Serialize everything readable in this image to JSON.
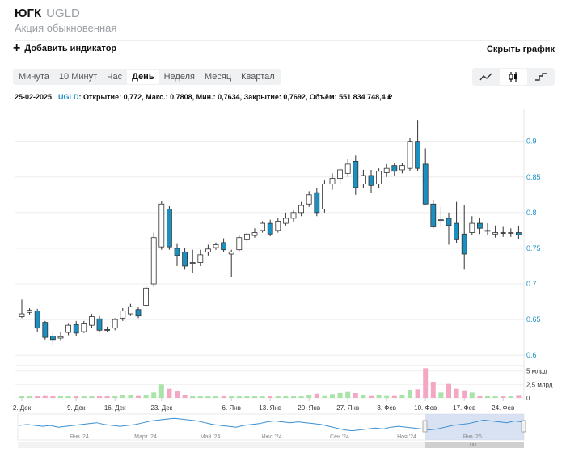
{
  "header": {
    "name": "ЮГК",
    "ticker": "UGLD",
    "subtitle": "Акция обыкновенная"
  },
  "toolbar": {
    "add_indicator": "Добавить индикатор",
    "hide_chart": "Скрыть график"
  },
  "period_tabs": [
    {
      "label": "Минута",
      "active": false
    },
    {
      "label": "10 Минут",
      "active": false
    },
    {
      "label": "Час",
      "active": false
    },
    {
      "label": "День",
      "active": true
    },
    {
      "label": "Неделя",
      "active": false
    },
    {
      "label": "Месяц",
      "active": false
    },
    {
      "label": "Квартал",
      "active": false
    }
  ],
  "chart_types": [
    {
      "icon": "line-chart-icon",
      "active": false
    },
    {
      "icon": "candlestick-icon",
      "active": true
    },
    {
      "icon": "step-chart-icon",
      "active": false
    }
  ],
  "info": {
    "date": "25-02-2025",
    "ticker": "UGLD",
    "text": ": Открытие: 0,772, Макс.: 0,7808, Мин.: 0,7634, Закрытие: 0,7692, Объём: 551 834 748,4 ₽"
  },
  "colors": {
    "up": "#ffffff",
    "down": "#1b8fbf",
    "vol_up": "#a8e3a8",
    "vol_down": "#f3a7c2",
    "axis_text": "#1a8fc4"
  },
  "chart_data": {
    "type": "candlestick",
    "x_ticks": [
      "2. Дек",
      "9. Дек",
      "16. Дек",
      "23. Дек",
      "6. Янв",
      "13. Янв",
      "20. Янв",
      "27. Янв",
      "3. Фев",
      "10. Фев",
      "17. Фев",
      "24. Фев"
    ],
    "x_tick_index": [
      0,
      7,
      12,
      18,
      27,
      32,
      37,
      42,
      47,
      52,
      57,
      62
    ],
    "y_ticks": [
      "0.6",
      "0.65",
      "0.7",
      "0.75",
      "0.8",
      "0.85",
      "0.9"
    ],
    "ylim": [
      0.59,
      0.945
    ],
    "vol_ticks": [
      "0",
      "2,5 млрд",
      "5 млрд"
    ],
    "vol_max": 6,
    "navigator_labels": [
      "Янв '24",
      "Март '24",
      "Май '24",
      "Июл '24",
      "Сен '24",
      "Ноя '24",
      "Янв '25"
    ],
    "candles": [
      [
        0.654,
        0.658,
        0.678,
        0.652,
        0.3
      ],
      [
        0.66,
        0.663,
        0.666,
        0.657,
        0.3
      ],
      [
        0.662,
        0.638,
        0.665,
        0.633,
        0.4
      ],
      [
        0.646,
        0.625,
        0.648,
        0.622,
        0.5
      ],
      [
        0.627,
        0.622,
        0.632,
        0.615,
        0.4
      ],
      [
        0.624,
        0.626,
        0.632,
        0.621,
        0.3
      ],
      [
        0.632,
        0.642,
        0.645,
        0.628,
        0.3
      ],
      [
        0.643,
        0.631,
        0.648,
        0.627,
        0.3
      ],
      [
        0.633,
        0.645,
        0.648,
        0.631,
        0.4
      ],
      [
        0.642,
        0.654,
        0.658,
        0.638,
        0.3
      ],
      [
        0.651,
        0.635,
        0.655,
        0.632,
        0.3
      ],
      [
        0.636,
        0.635,
        0.64,
        0.632,
        0.3
      ],
      [
        0.638,
        0.65,
        0.652,
        0.635,
        0.4
      ],
      [
        0.652,
        0.662,
        0.666,
        0.648,
        0.6
      ],
      [
        0.658,
        0.668,
        0.672,
        0.655,
        0.6
      ],
      [
        0.664,
        0.655,
        0.668,
        0.652,
        0.5
      ],
      [
        0.67,
        0.694,
        0.698,
        0.667,
        0.6
      ],
      [
        0.7,
        0.765,
        0.772,
        0.696,
        1.0
      ],
      [
        0.752,
        0.812,
        0.816,
        0.748,
        2.5
      ],
      [
        0.805,
        0.752,
        0.809,
        0.748,
        1.7
      ],
      [
        0.75,
        0.74,
        0.756,
        0.725,
        1.2
      ],
      [
        0.745,
        0.725,
        0.75,
        0.72,
        0.6
      ],
      [
        0.73,
        0.73,
        0.748,
        0.715,
        0.4
      ],
      [
        0.73,
        0.741,
        0.748,
        0.725,
        0.3
      ],
      [
        0.745,
        0.749,
        0.755,
        0.74,
        0.4
      ],
      [
        0.751,
        0.755,
        0.758,
        0.748,
        0.3
      ],
      [
        0.758,
        0.748,
        0.764,
        0.745,
        0.3
      ],
      [
        0.742,
        0.745,
        0.748,
        0.71,
        0.3
      ],
      [
        0.748,
        0.765,
        0.768,
        0.746,
        0.3
      ],
      [
        0.762,
        0.77,
        0.772,
        0.758,
        0.4
      ],
      [
        0.768,
        0.772,
        0.778,
        0.765,
        0.3
      ],
      [
        0.775,
        0.785,
        0.788,
        0.772,
        0.3
      ],
      [
        0.785,
        0.77,
        0.79,
        0.767,
        0.4
      ],
      [
        0.775,
        0.788,
        0.792,
        0.772,
        0.4
      ],
      [
        0.785,
        0.792,
        0.8,
        0.782,
        0.3
      ],
      [
        0.792,
        0.8,
        0.803,
        0.787,
        0.4
      ],
      [
        0.8,
        0.81,
        0.815,
        0.795,
        0.4
      ],
      [
        0.812,
        0.825,
        0.83,
        0.808,
        0.6
      ],
      [
        0.828,
        0.8,
        0.835,
        0.795,
        0.8
      ],
      [
        0.805,
        0.84,
        0.845,
        0.8,
        0.5
      ],
      [
        0.84,
        0.848,
        0.855,
        0.832,
        0.7
      ],
      [
        0.848,
        0.86,
        0.863,
        0.84,
        0.9
      ],
      [
        0.855,
        0.868,
        0.875,
        0.85,
        1.1
      ],
      [
        0.872,
        0.835,
        0.88,
        0.825,
        0.9
      ],
      [
        0.84,
        0.852,
        0.86,
        0.835,
        0.6
      ],
      [
        0.852,
        0.838,
        0.86,
        0.828,
        0.5
      ],
      [
        0.84,
        0.858,
        0.862,
        0.835,
        0.6
      ],
      [
        0.856,
        0.862,
        0.868,
        0.85,
        0.5
      ],
      [
        0.866,
        0.858,
        0.87,
        0.852,
        0.5
      ],
      [
        0.86,
        0.866,
        0.87,
        0.855,
        0.6
      ],
      [
        0.862,
        0.9,
        0.905,
        0.858,
        1.5
      ],
      [
        0.9,
        0.862,
        0.93,
        0.858,
        1.6
      ],
      [
        0.868,
        0.812,
        0.89,
        0.81,
        5.5
      ],
      [
        0.812,
        0.78,
        0.818,
        0.778,
        3.0
      ],
      [
        0.79,
        0.79,
        0.808,
        0.78,
        1.0
      ],
      [
        0.792,
        0.782,
        0.8,
        0.755,
        2.6
      ],
      [
        0.785,
        0.762,
        0.815,
        0.757,
        1.7
      ],
      [
        0.77,
        0.742,
        0.81,
        0.72,
        1.4
      ],
      [
        0.772,
        0.785,
        0.795,
        0.768,
        1.0
      ],
      [
        0.785,
        0.778,
        0.792,
        0.77,
        0.4
      ],
      [
        0.775,
        0.775,
        0.785,
        0.768,
        0.3
      ],
      [
        0.77,
        0.772,
        0.782,
        0.765,
        0.4
      ],
      [
        0.772,
        0.771,
        0.78,
        0.766,
        0.3
      ],
      [
        0.772,
        0.772,
        0.778,
        0.766,
        0.3
      ],
      [
        0.772,
        0.769,
        0.781,
        0.763,
        0.55
      ]
    ]
  }
}
